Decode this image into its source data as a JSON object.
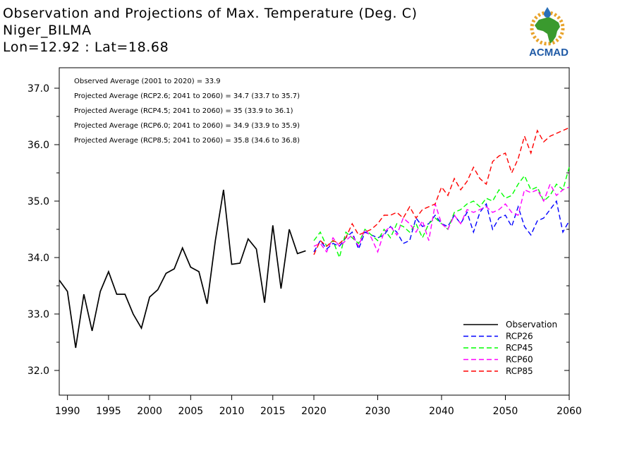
{
  "title": {
    "line1": "Observation and Projections of Max. Temperature (Deg. C)",
    "line2": "Niger_BILMA",
    "line3": "Lon=12.92 : Lat=18.68"
  },
  "logo": {
    "text": "ACMAD",
    "colors": {
      "africa": "#3a9a2e",
      "sun": "#e8a32a",
      "drop": "#2a6fb8",
      "text": "#1f5aa6"
    }
  },
  "annotations": [
    "Observed Average (2001 to 2020) = 33.9",
    "Projected Average (RCP2.6; 2041 to 2060) = 34.7 (33.7 to 35.7)",
    "Projected Average (RCP4.5; 2041 to 2060) = 35 (33.9 to 36.1)",
    "Projected Average (RCP6.0; 2041 to 2060) = 34.9 (33.9 to 35.9)",
    "Projected Average (RCP8.5; 2041 to 2060) = 35.8 (34.6 to 36.8)"
  ],
  "chart_data": {
    "type": "line",
    "title": "Observation and Projections of Max. Temperature (Deg. C)",
    "xlabel": "",
    "ylabel": "",
    "xlim": [
      1989,
      2060
    ],
    "ylim": [
      31.5,
      38.2
    ],
    "grid": false,
    "legend_position": "bottom-right",
    "x_ticks_early": [
      "1990",
      "1995",
      "2000",
      "2005",
      "2010",
      "2015",
      "2020"
    ],
    "x_ticks_late": [
      "2030",
      "2040",
      "2050",
      "2060"
    ],
    "y_ticks": [
      "32.0",
      "33.0",
      "34.0",
      "35.0",
      "36.0",
      "37.0"
    ],
    "y_tick_values": [
      32.0,
      33.0,
      34.0,
      35.0,
      36.0,
      37.0
    ],
    "series": [
      {
        "name": "Observation",
        "color": "#000000",
        "dashed": false,
        "x": [
          1989,
          1990,
          1991,
          1992,
          1993,
          1994,
          1995,
          1996,
          1997,
          1998,
          1999,
          2000,
          2001,
          2002,
          2003,
          2004,
          2005,
          2006,
          2007,
          2008,
          2009,
          2010,
          2011,
          2012,
          2013,
          2014,
          2015,
          2016,
          2017,
          2018,
          2019
        ],
        "values": [
          33.6,
          33.4,
          32.4,
          33.35,
          32.7,
          33.4,
          33.75,
          33.35,
          33.35,
          33.0,
          32.75,
          33.3,
          33.43,
          33.72,
          33.8,
          34.17,
          33.83,
          33.75,
          33.18,
          34.3,
          35.2,
          33.88,
          33.9,
          34.33,
          34.15,
          33.2,
          34.57,
          33.45,
          34.5,
          34.07,
          34.12
        ]
      },
      {
        "name": "RCP26",
        "color": "#0000ff",
        "dashed": true,
        "x": [
          2020,
          2021,
          2022,
          2023,
          2024,
          2025,
          2026,
          2027,
          2028,
          2029,
          2030,
          2031,
          2032,
          2033,
          2034,
          2035,
          2036,
          2037,
          2038,
          2039,
          2040,
          2041,
          2042,
          2043,
          2044,
          2045,
          2046,
          2047,
          2048,
          2049,
          2050,
          2051,
          2052,
          2053,
          2054,
          2055,
          2056,
          2057,
          2058,
          2059,
          2060
        ],
        "values": [
          34.1,
          34.3,
          34.15,
          34.25,
          34.2,
          34.35,
          34.45,
          34.15,
          34.45,
          34.4,
          34.35,
          34.4,
          34.55,
          34.45,
          34.25,
          34.3,
          34.7,
          34.55,
          34.6,
          34.75,
          34.6,
          34.55,
          34.75,
          34.6,
          34.8,
          34.45,
          34.8,
          34.95,
          34.5,
          34.7,
          34.75,
          34.55,
          34.9,
          34.55,
          34.4,
          34.65,
          34.7,
          34.85,
          35.0,
          34.45,
          34.65
        ]
      },
      {
        "name": "RCP45",
        "color": "#00ff00",
        "dashed": true,
        "x": [
          2020,
          2021,
          2022,
          2023,
          2024,
          2025,
          2026,
          2027,
          2028,
          2029,
          2030,
          2031,
          2032,
          2033,
          2034,
          2035,
          2036,
          2037,
          2038,
          2039,
          2040,
          2041,
          2042,
          2043,
          2044,
          2045,
          2046,
          2047,
          2048,
          2049,
          2050,
          2051,
          2052,
          2053,
          2054,
          2055,
          2056,
          2057,
          2058,
          2059,
          2060
        ],
        "values": [
          34.3,
          34.45,
          34.2,
          34.3,
          34.0,
          34.45,
          34.35,
          34.25,
          34.5,
          34.4,
          34.3,
          34.5,
          34.35,
          34.6,
          34.55,
          34.45,
          34.6,
          34.35,
          34.6,
          34.7,
          34.6,
          34.5,
          34.8,
          34.85,
          34.95,
          35.0,
          34.9,
          35.05,
          35.0,
          35.2,
          35.05,
          35.1,
          35.3,
          35.45,
          35.2,
          35.25,
          35.0,
          35.1,
          35.3,
          35.2,
          35.6
        ]
      },
      {
        "name": "RCP60",
        "color": "#ff00ff",
        "dashed": true,
        "x": [
          2020,
          2021,
          2022,
          2023,
          2024,
          2025,
          2026,
          2027,
          2028,
          2029,
          2030,
          2031,
          2032,
          2033,
          2034,
          2035,
          2036,
          2037,
          2038,
          2039,
          2040,
          2041,
          2042,
          2043,
          2044,
          2045,
          2046,
          2047,
          2048,
          2049,
          2050,
          2051,
          2052,
          2053,
          2054,
          2055,
          2056,
          2057,
          2058,
          2059,
          2060
        ],
        "values": [
          34.2,
          34.25,
          34.1,
          34.35,
          34.2,
          34.3,
          34.4,
          34.2,
          34.5,
          34.35,
          34.1,
          34.45,
          34.55,
          34.4,
          34.7,
          34.6,
          34.45,
          34.65,
          34.3,
          34.95,
          34.6,
          34.5,
          34.75,
          34.6,
          34.85,
          34.8,
          34.85,
          34.9,
          34.8,
          34.85,
          34.95,
          34.8,
          34.75,
          35.2,
          35.15,
          35.2,
          35.0,
          35.3,
          35.1,
          35.2,
          35.25
        ]
      },
      {
        "name": "RCP85",
        "color": "#ff0000",
        "dashed": true,
        "x": [
          2020,
          2021,
          2022,
          2023,
          2024,
          2025,
          2026,
          2027,
          2028,
          2029,
          2030,
          2031,
          2032,
          2033,
          2034,
          2035,
          2036,
          2037,
          2038,
          2039,
          2040,
          2041,
          2042,
          2043,
          2044,
          2045,
          2046,
          2047,
          2048,
          2049,
          2050,
          2051,
          2052,
          2053,
          2054,
          2055,
          2056,
          2057,
          2058,
          2059,
          2060
        ],
        "values": [
          34.05,
          34.3,
          34.2,
          34.3,
          34.25,
          34.35,
          34.6,
          34.4,
          34.45,
          34.5,
          34.6,
          34.75,
          34.75,
          34.8,
          34.7,
          34.9,
          34.7,
          34.85,
          34.9,
          34.95,
          35.25,
          35.1,
          35.4,
          35.2,
          35.35,
          35.6,
          35.4,
          35.3,
          35.7,
          35.8,
          35.85,
          35.5,
          35.75,
          36.15,
          35.85,
          36.25,
          36.05,
          36.15,
          36.2,
          36.25,
          36.3
        ]
      }
    ]
  }
}
